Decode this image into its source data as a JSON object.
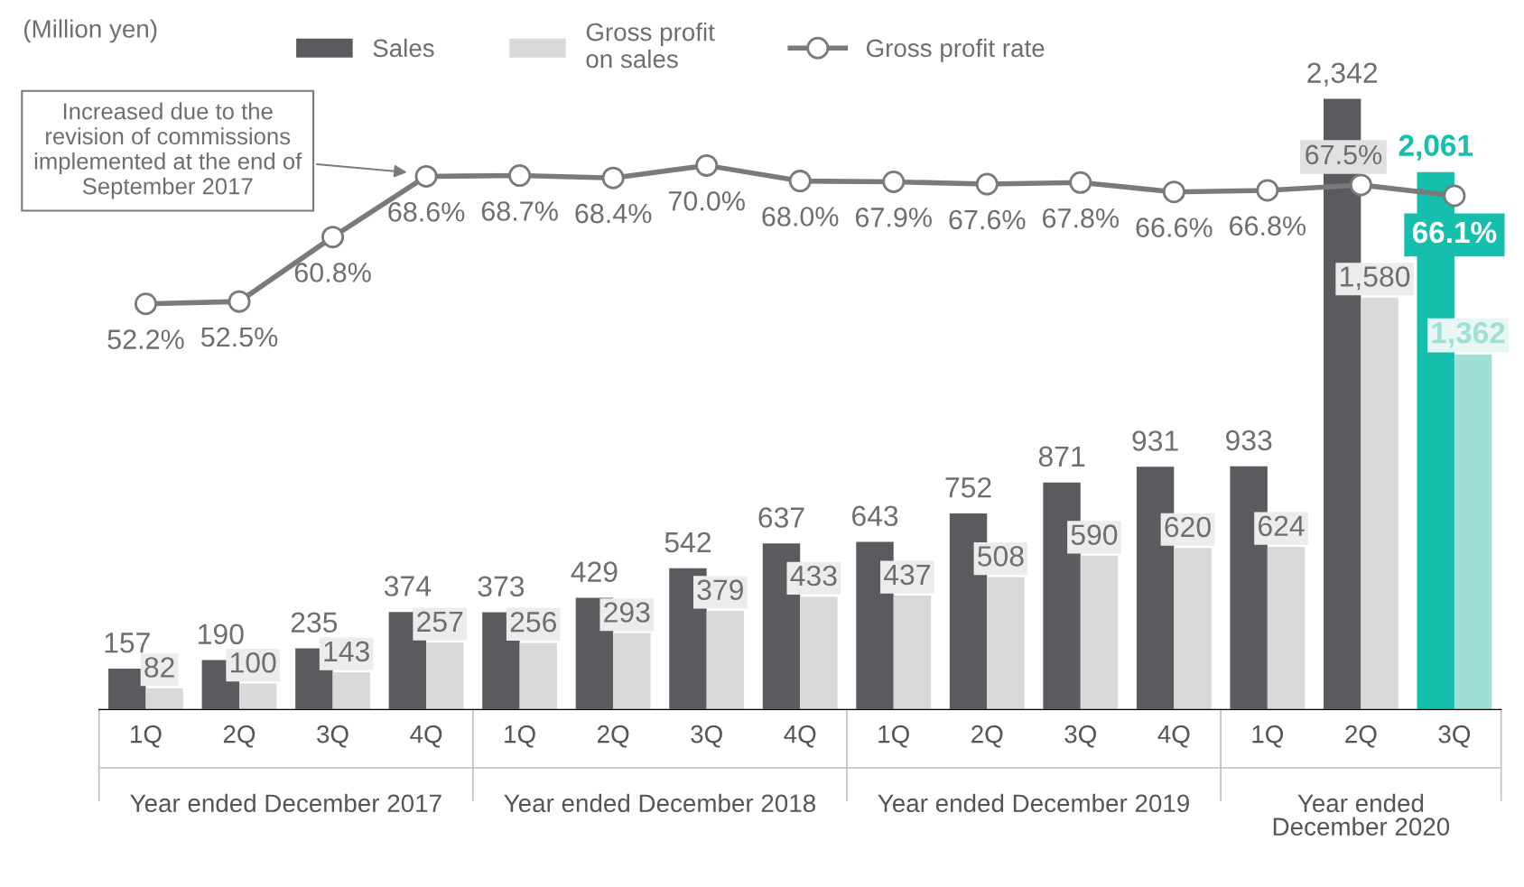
{
  "chart_data": {
    "type": "bar",
    "categories": [
      "1Q",
      "2Q",
      "3Q",
      "4Q",
      "1Q",
      "2Q",
      "3Q",
      "4Q",
      "1Q",
      "2Q",
      "3Q",
      "4Q",
      "1Q",
      "2Q",
      "3Q"
    ],
    "series": [
      {
        "name": "Sales",
        "color": "#5b5b5f",
        "colors": [
          "#5b5b5f",
          "#5b5b5f",
          "#5b5b5f",
          "#5b5b5f",
          "#5b5b5f",
          "#5b5b5f",
          "#5b5b5f",
          "#5b5b5f",
          "#5b5b5f",
          "#5b5b5f",
          "#5b5b5f",
          "#5b5b5f",
          "#5b5b5f",
          "#5b5b5f",
          "#14bfae"
        ],
        "values": [
          157,
          190,
          235,
          374,
          373,
          429,
          542,
          637,
          643,
          752,
          871,
          931,
          933,
          2342,
          2061
        ],
        "value_labels": [
          "157",
          "190",
          "235",
          "374",
          "373",
          "429",
          "542",
          "637",
          "643",
          "752",
          "871",
          "931",
          "933",
          "2,342",
          "2,061"
        ]
      },
      {
        "name": "Gross profit\non sales",
        "color": "#d9d9d9",
        "colors": [
          "#d9d9d9",
          "#d9d9d9",
          "#d9d9d9",
          "#d9d9d9",
          "#d9d9d9",
          "#d9d9d9",
          "#d9d9d9",
          "#d9d9d9",
          "#d9d9d9",
          "#d9d9d9",
          "#d9d9d9",
          "#d9d9d9",
          "#d9d9d9",
          "#d9d9d9",
          "#9fe0d3"
        ],
        "values": [
          82,
          100,
          143,
          257,
          256,
          293,
          379,
          433,
          437,
          508,
          590,
          620,
          624,
          1580,
          1362
        ],
        "value_labels": [
          "82",
          "100",
          "143",
          "257",
          "256",
          "293",
          "379",
          "433",
          "437",
          "508",
          "590",
          "620",
          "624",
          "1,580",
          "1,362"
        ]
      },
      {
        "name": "Gross profit rate",
        "type": "line",
        "axis": "y2",
        "color": "#7a7a7a",
        "marker": "circle",
        "values": [
          52.2,
          52.5,
          60.8,
          68.6,
          68.7,
          68.4,
          70.0,
          68.0,
          67.9,
          67.6,
          67.8,
          66.6,
          66.8,
          67.5,
          66.1
        ],
        "value_labels": [
          "52.2%",
          "52.5%",
          "60.8%",
          "68.6%",
          "68.7%",
          "68.4%",
          "70.0%",
          "68.0%",
          "67.9%",
          "67.6%",
          "67.8%",
          "66.6%",
          "66.8%",
          "67.5%",
          "66.1%"
        ]
      }
    ],
    "annotations": [
      "(Million yen)",
      "Increased due to the\nrevision of commissions\nimplemented at the end of\nSeptember 2017",
      "Year ended December 2017",
      "Year ended December 2018",
      "Year ended December 2019",
      "Year ended\nDecember 2020"
    ],
    "legend": "top",
    "tick_labels": "x"
  }
}
